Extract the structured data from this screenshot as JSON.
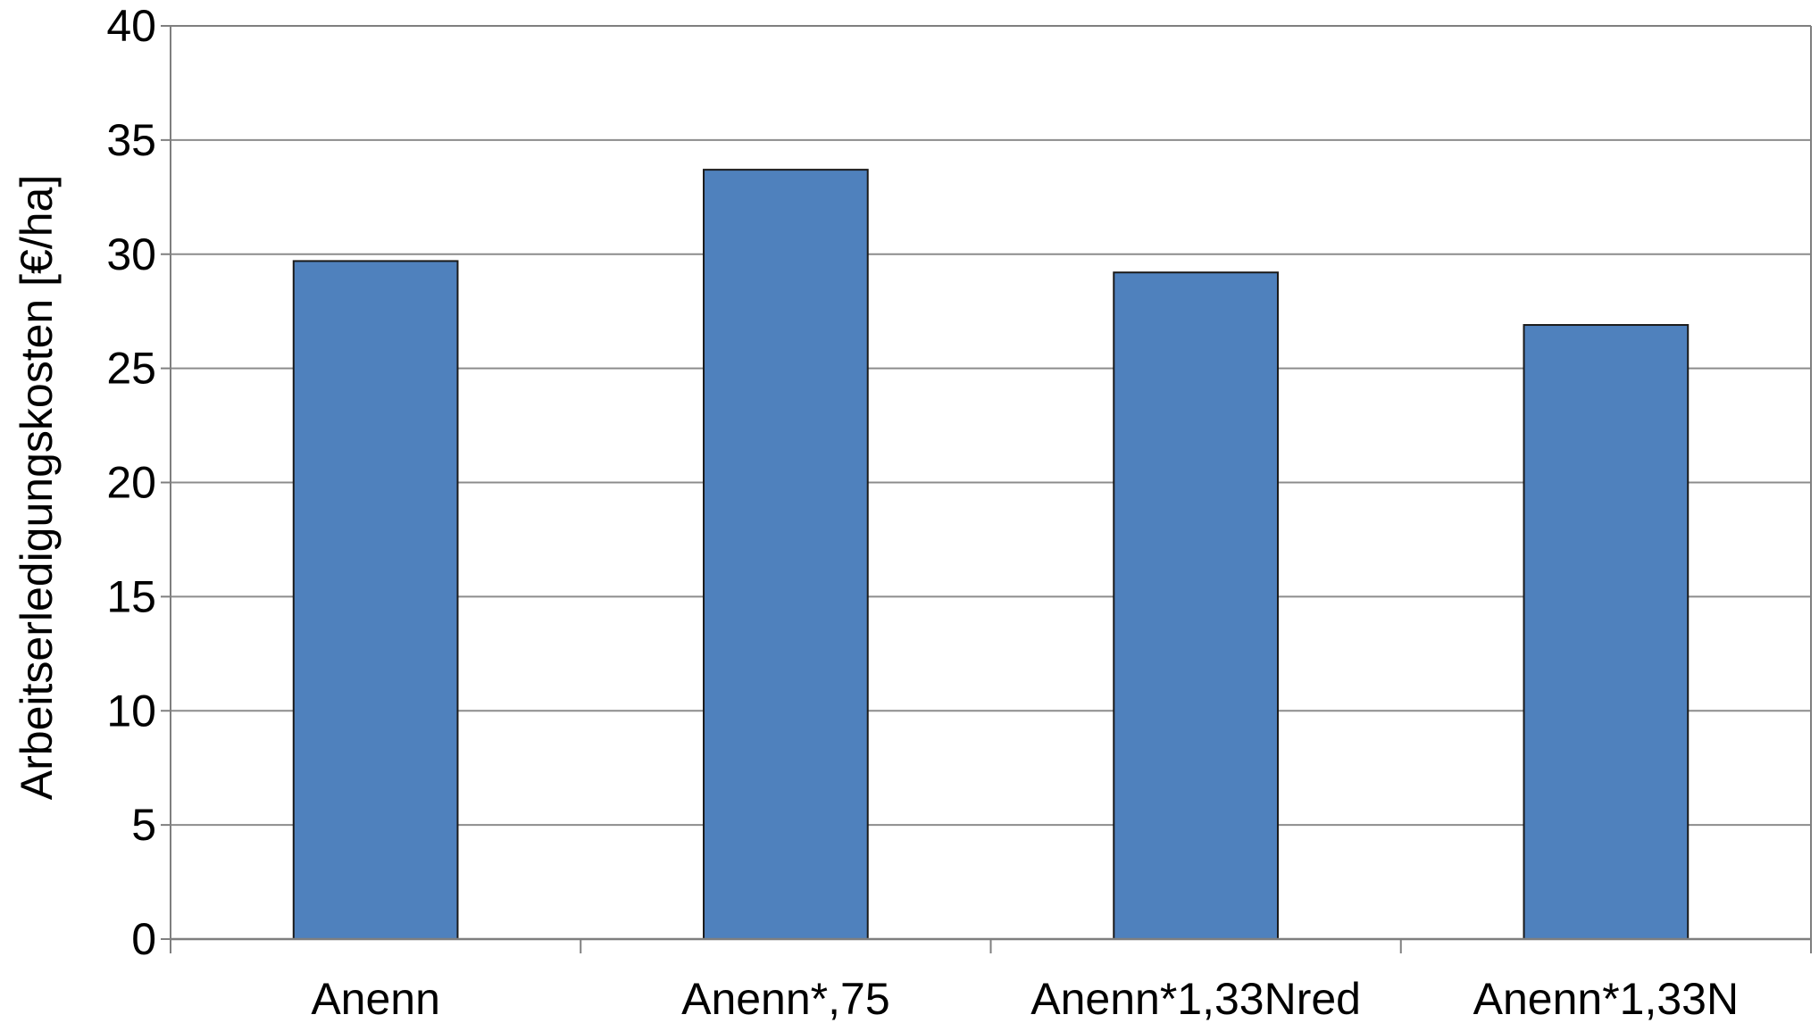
{
  "chart_data": {
    "type": "bar",
    "categories": [
      "Anenn",
      "Anenn*,75",
      "Anenn*1,33Nred",
      "Anenn*1,33N"
    ],
    "values": [
      29.7,
      33.7,
      29.2,
      26.9
    ],
    "title": "",
    "xlabel": "",
    "ylabel": "Arbeitserledigungskosten [€/ha]",
    "ylim": [
      0,
      40
    ],
    "yticks": [
      0,
      5,
      10,
      15,
      20,
      25,
      30,
      35,
      40
    ],
    "grid": true,
    "legend": "none",
    "colors": {
      "bar_fill": "#4f81bd",
      "bar_stroke": "#1a1a1a",
      "grid": "#8c8c8c",
      "axis": "#7f7f7f",
      "text": "#000000"
    }
  }
}
